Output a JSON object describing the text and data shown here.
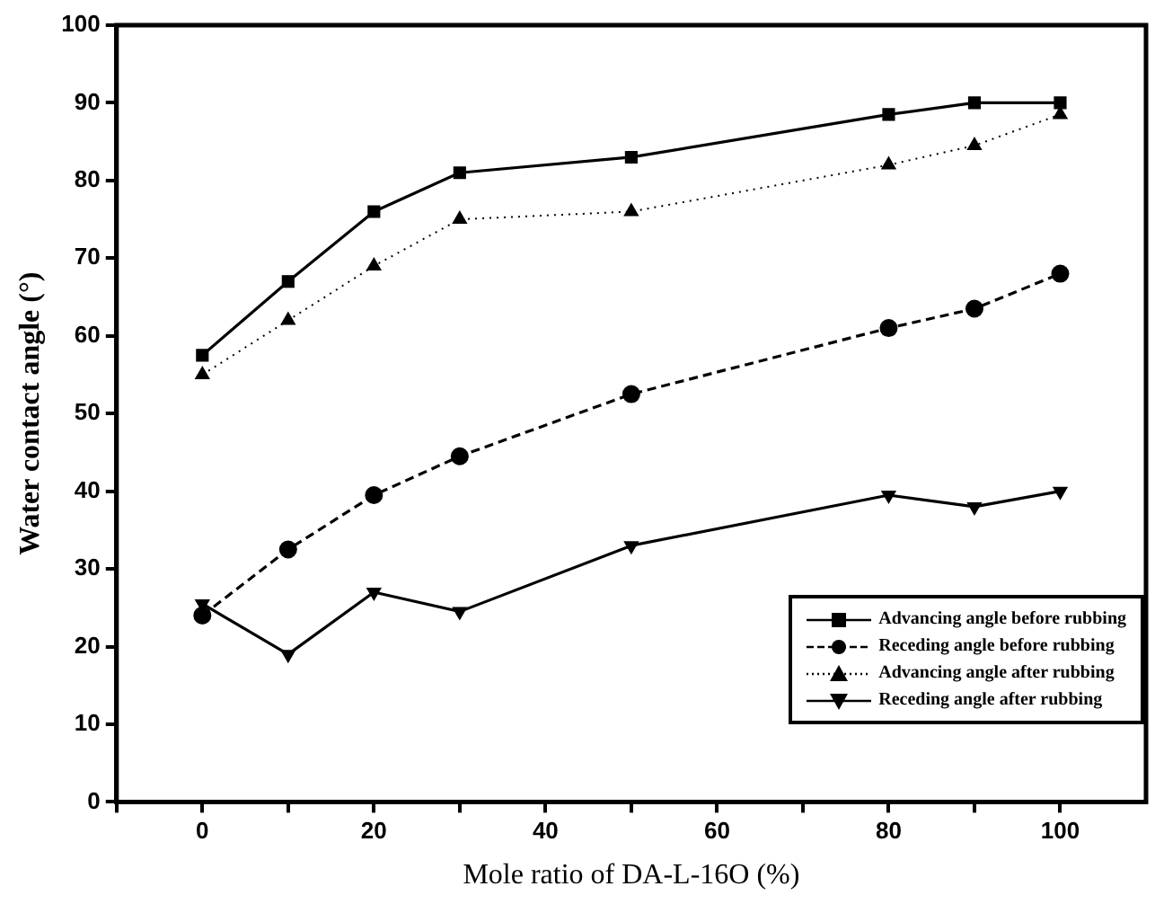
{
  "chart_data": {
    "type": "line",
    "xlabel": "Mole ratio of DA-L-16O (%)",
    "ylabel": "Water contact angle (°)",
    "x": [
      0,
      10,
      20,
      30,
      50,
      80,
      90,
      100
    ],
    "series": [
      {
        "name": "Advancing angle before rubbing",
        "color": "#000000",
        "marker": "square",
        "line_style": "solid",
        "values": [
          57.5,
          67,
          76,
          81,
          83,
          88.5,
          90,
          90
        ]
      },
      {
        "name": "Receding angle before rubbing",
        "color": "#000000",
        "marker": "circle",
        "line_style": "dashed",
        "values": [
          24,
          32.5,
          39.5,
          44.5,
          52.5,
          61,
          63.5,
          68
        ]
      },
      {
        "name": "Advancing angle after rubbing",
        "color": "#000000",
        "marker": "triangle",
        "line_style": "dotted",
        "values": [
          55,
          62,
          69,
          75,
          76,
          82,
          84.5,
          88.5
        ]
      },
      {
        "name": "Receding angle after rubbing",
        "color": "#000000",
        "marker": "triangle-down",
        "line_style": "solid",
        "values": [
          25.5,
          19,
          27,
          24.5,
          33,
          39.5,
          38,
          40
        ]
      }
    ],
    "xlim": [
      -10,
      110
    ],
    "xticks": [
      {
        "value": -10,
        "label": null
      },
      0,
      {
        "value": 10,
        "label": null
      },
      20,
      {
        "value": 30,
        "label": null
      },
      40,
      {
        "value": 50,
        "label": null
      },
      60,
      {
        "value": 70,
        "label": null
      },
      80,
      {
        "value": 90,
        "label": null
      },
      100
    ],
    "ylim": [
      0,
      100
    ],
    "yticks": [
      0,
      10,
      20,
      30,
      40,
      50,
      60,
      70,
      80,
      90,
      100
    ],
    "grid": false,
    "legend": "bottom right"
  }
}
